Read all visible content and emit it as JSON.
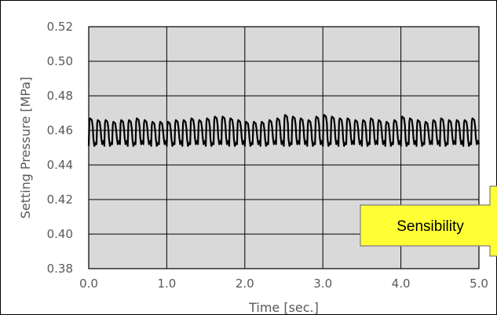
{
  "chart_data": {
    "type": "line",
    "title": "",
    "xlabel": "Time [sec.]",
    "ylabel": "Setting Pressure [MPa]",
    "xlim": [
      0.0,
      5.0
    ],
    "ylim": [
      0.38,
      0.52
    ],
    "x_ticks": [
      "0.0",
      "1.0",
      "2.0",
      "3.0",
      "4.0",
      "5.0"
    ],
    "y_ticks": [
      "0.52",
      "0.50",
      "0.48",
      "0.46",
      "0.44",
      "0.42",
      "0.40",
      "0.38"
    ],
    "grid": true,
    "legend": "none",
    "series": [
      {
        "oscillation_period_sec": 0.1,
        "peak_values": [
          0.467,
          0.466,
          0.466,
          0.465,
          0.466,
          0.466,
          0.467,
          0.466,
          0.465,
          0.465,
          0.465,
          0.466,
          0.466,
          0.467,
          0.466,
          0.467,
          0.468,
          0.468,
          0.467,
          0.466,
          0.465,
          0.465,
          0.465,
          0.466,
          0.467,
          0.469,
          0.468,
          0.467,
          0.466,
          0.468,
          0.469,
          0.468,
          0.467,
          0.467,
          0.466,
          0.466,
          0.467,
          0.466,
          0.465,
          0.466,
          0.468,
          0.467,
          0.466,
          0.465,
          0.466,
          0.467,
          0.466,
          0.466,
          0.466,
          0.467
        ],
        "trough_values": [
          0.451,
          0.452,
          0.451,
          0.452,
          0.452,
          0.451,
          0.452,
          0.452,
          0.451,
          0.452,
          0.451,
          0.452,
          0.451,
          0.452,
          0.452,
          0.451,
          0.452,
          0.452,
          0.451,
          0.452,
          0.451,
          0.452,
          0.451,
          0.452,
          0.452,
          0.451,
          0.452,
          0.452,
          0.451,
          0.452,
          0.451,
          0.452,
          0.451,
          0.452,
          0.452,
          0.451,
          0.452,
          0.452,
          0.451,
          0.452,
          0.451,
          0.452,
          0.451,
          0.452,
          0.452,
          0.451,
          0.452,
          0.452,
          0.451,
          0.452
        ]
      }
    ],
    "colors": {
      "plot_background": "#d9d9d9",
      "line": "#000000",
      "grid": "#000000",
      "axis_text": "#595959"
    }
  },
  "callout": {
    "label": "Sensibility",
    "fill": "#ffff33",
    "border": "#7f7f7f"
  }
}
